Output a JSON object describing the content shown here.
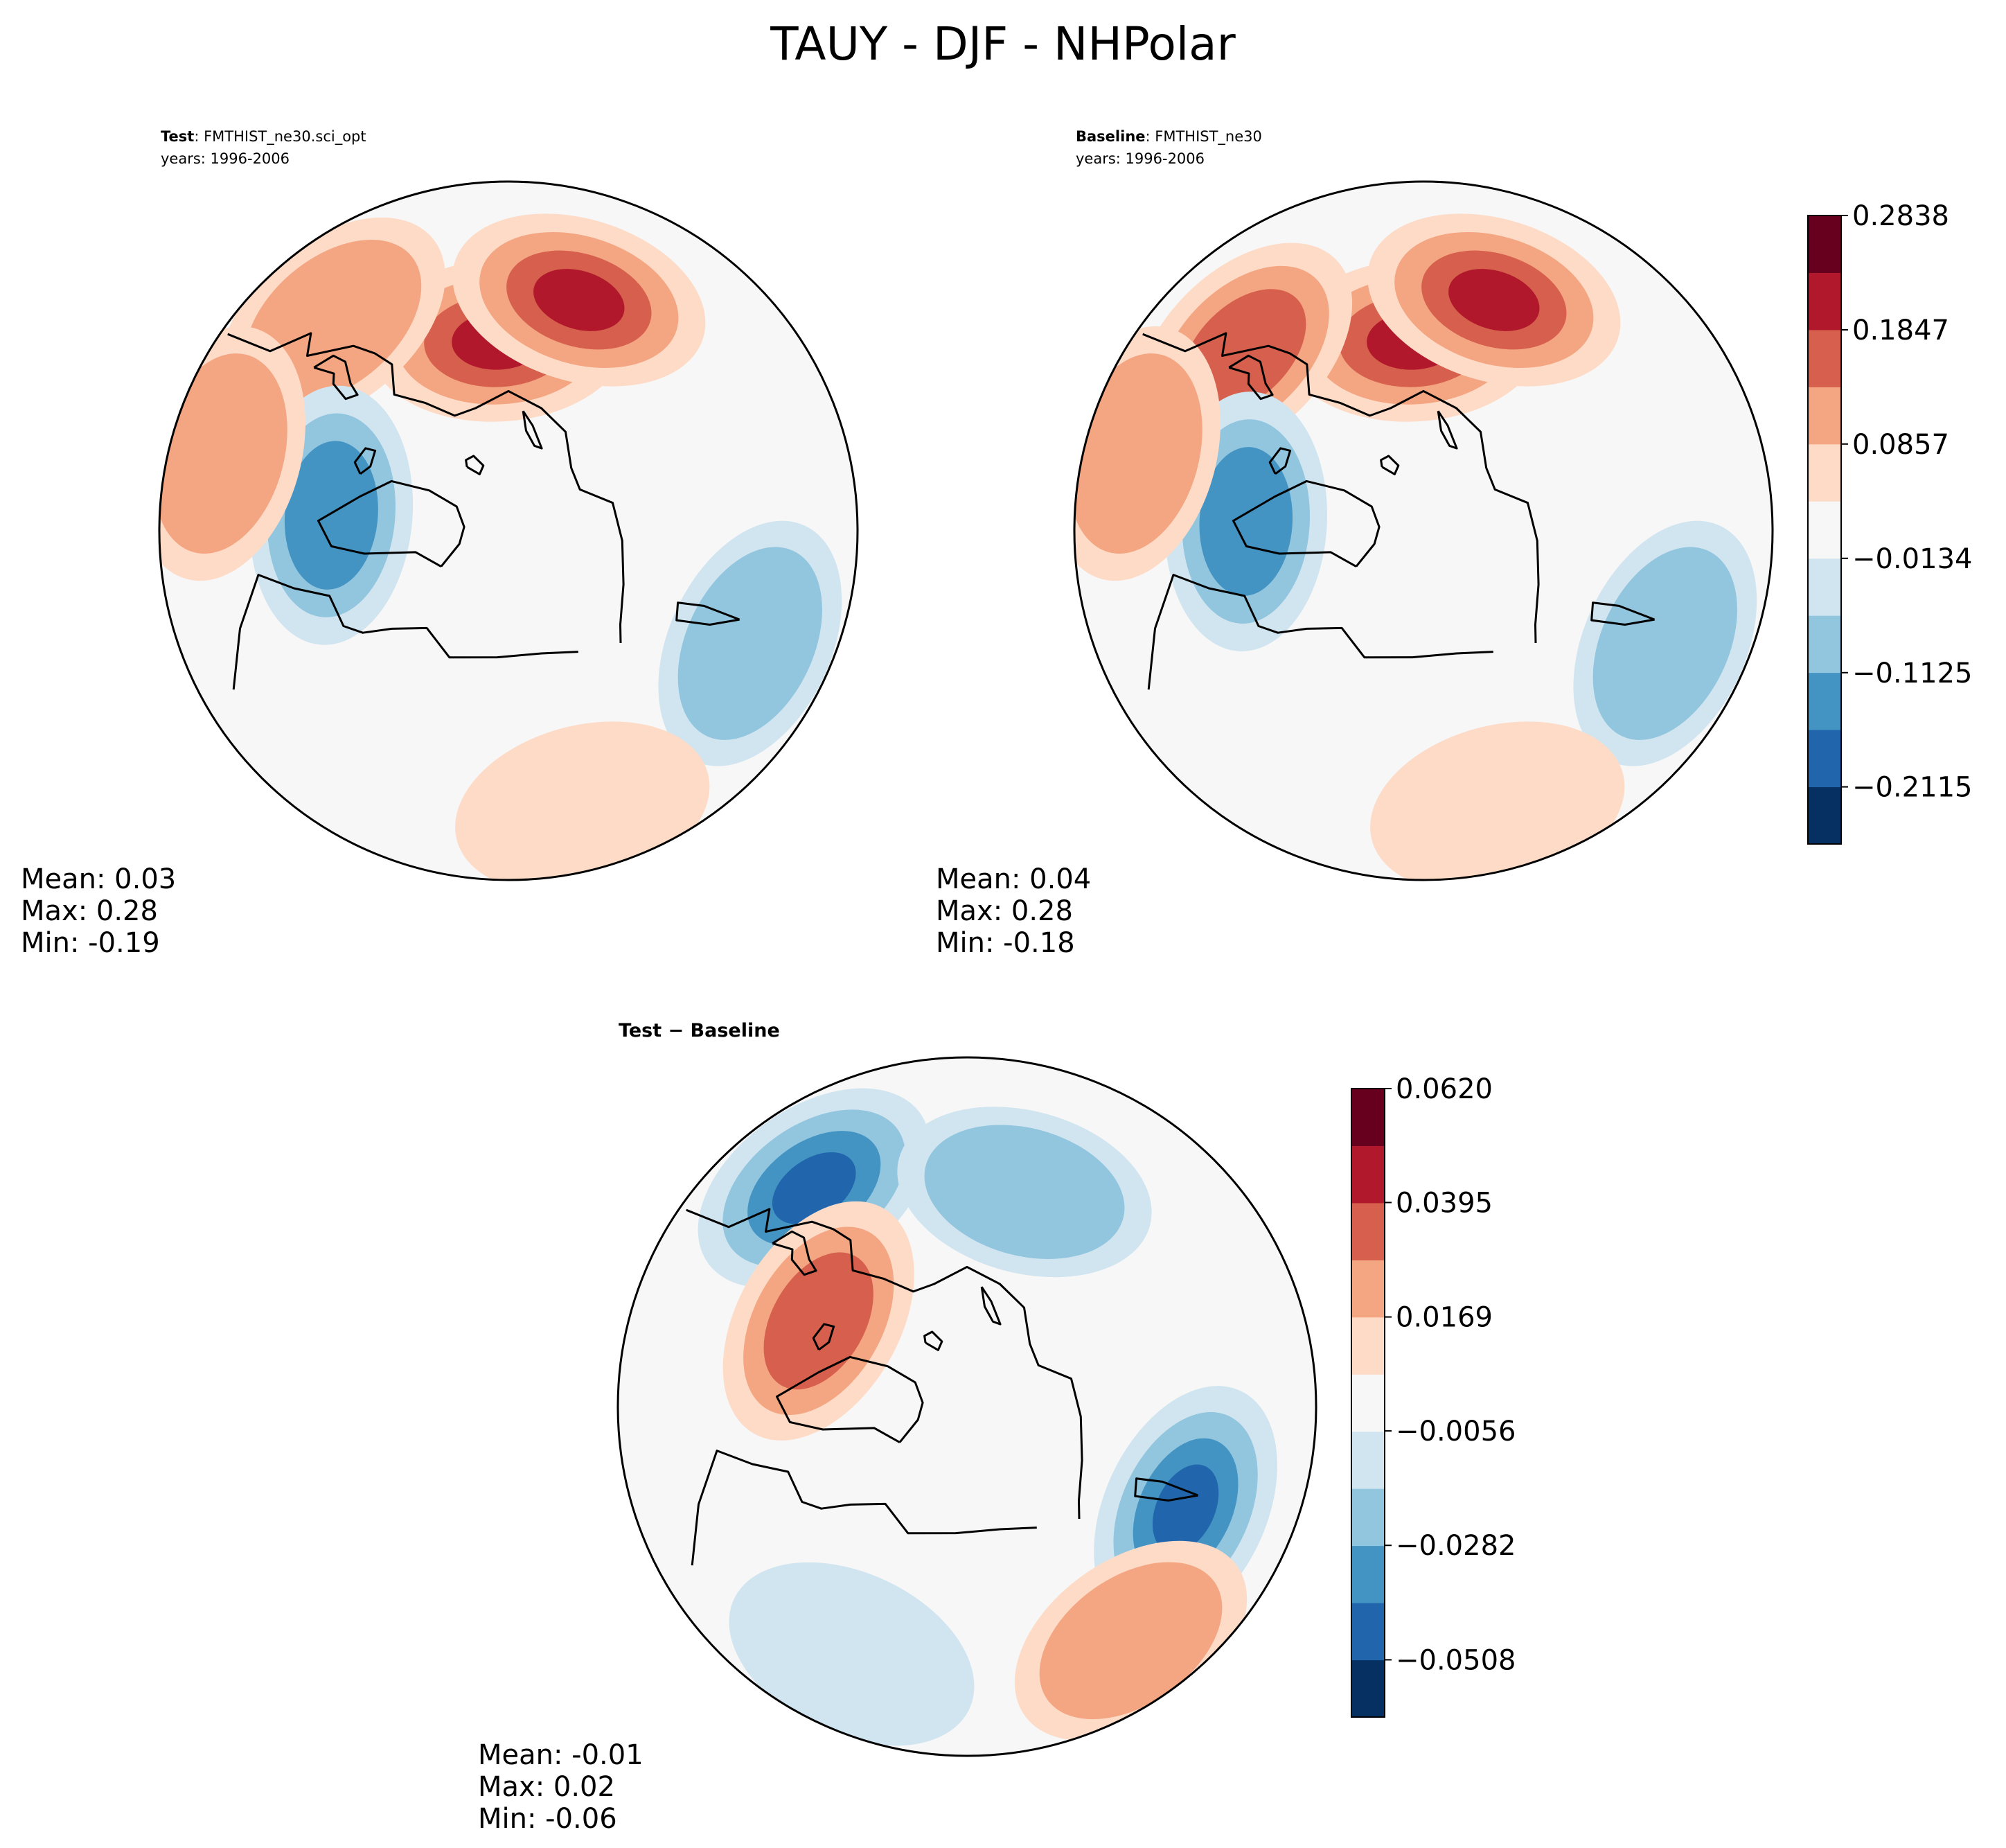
{
  "figure": {
    "title": "TAUY - DJF - NHPolar"
  },
  "panels": [
    {
      "label": "Test",
      "case": ": FMTHIST_ne30.sci_opt",
      "years": "years: 1996-2006",
      "stats": {
        "mean": "Mean:  0.03",
        "max": "Max:  0.28",
        "min": "Min: -0.19"
      },
      "field_features": [
        {
          "kind": "warm",
          "lon": 42,
          "lat": 60,
          "level": 4
        },
        {
          "kind": "warm",
          "lon": 62,
          "lat": 52,
          "level": 4
        },
        {
          "kind": "warm",
          "lon": 5,
          "lat": 47,
          "level": 2
        },
        {
          "kind": "cold",
          "lon": -40,
          "lat": 62,
          "level": 3
        },
        {
          "kind": "cold",
          "lon": 160,
          "lat": 48,
          "level": 2
        },
        {
          "kind": "warm",
          "lon": -30,
          "lat": 43,
          "level": 2
        },
        {
          "kind": "warm",
          "lon": -150,
          "lat": 45,
          "level": 1
        }
      ]
    },
    {
      "label": "Baseline",
      "case": ": FMTHIST_ne30",
      "years": "years: 1996-2006",
      "stats": {
        "mean": "Mean:  0.04",
        "max": "Max:  0.28",
        "min": "Min: -0.18"
      },
      "field_features": [
        {
          "kind": "warm",
          "lon": 42,
          "lat": 60,
          "level": 4
        },
        {
          "kind": "warm",
          "lon": 62,
          "lat": 52,
          "level": 4
        },
        {
          "kind": "warm",
          "lon": 0,
          "lat": 50,
          "level": 3
        },
        {
          "kind": "cold",
          "lon": -42,
          "lat": 62,
          "level": 3
        },
        {
          "kind": "cold",
          "lon": 160,
          "lat": 48,
          "level": 2
        },
        {
          "kind": "warm",
          "lon": -30,
          "lat": 43,
          "level": 2
        },
        {
          "kind": "warm",
          "lon": -150,
          "lat": 45,
          "level": 1
        }
      ]
    },
    {
      "label": "Test − Baseline",
      "stats": {
        "mean": "Mean: -0.01",
        "max": "Max:  0.02",
        "min": "Min: -0.06"
      },
      "field_features": [
        {
          "kind": "cold",
          "lon": 160,
          "lat": 52,
          "level": 4
        },
        {
          "kind": "cold",
          "lon": 10,
          "lat": 48,
          "level": 4
        },
        {
          "kind": "cold",
          "lon": 60,
          "lat": 55,
          "level": 2
        },
        {
          "kind": "warm",
          "lon": -15,
          "lat": 63,
          "level": 3
        },
        {
          "kind": "warm",
          "lon": -170,
          "lat": 45,
          "level": 2
        },
        {
          "kind": "cold",
          "lon": -110,
          "lat": 47,
          "level": 1
        }
      ]
    }
  ],
  "colorbars": [
    {
      "ticks": [
        "0.2838",
        "0.1847",
        "0.0857",
        "−0.0134",
        "−0.1125",
        "−0.2115"
      ],
      "tick_values": [
        0.2838,
        0.1847,
        0.0857,
        -0.0134,
        -0.1125,
        -0.2115
      ],
      "range": [
        -0.261,
        0.2838
      ]
    },
    {
      "ticks": [
        "0.0620",
        "0.0395",
        "0.0169",
        "−0.0056",
        "−0.0282",
        "−0.0508"
      ],
      "tick_values": [
        0.062,
        0.0395,
        0.0169,
        -0.0056,
        -0.0282,
        -0.0508
      ],
      "range": [
        -0.0621,
        0.062
      ]
    }
  ],
  "colors": [
    "#053061",
    "#2166ac",
    "#4393c3",
    "#92c5de",
    "#d1e5f0",
    "#f7f7f7",
    "#fddbc7",
    "#f4a582",
    "#d6604d",
    "#b2182b",
    "#67001f"
  ],
  "chart_data": [
    {
      "type": "heatmap",
      "title": "Test : FMTHIST_ne30.sci_opt",
      "projection": "North Polar Stereographic",
      "years": "1996-2006",
      "variable": "TAUY",
      "season": "DJF",
      "mean": 0.03,
      "max": 0.28,
      "min": -0.19,
      "colorbar_ticks": [
        0.2838,
        0.1847,
        0.0857,
        -0.0134,
        -0.1125,
        -0.2115
      ]
    },
    {
      "type": "heatmap",
      "title": "Baseline : FMTHIST_ne30",
      "projection": "North Polar Stereographic",
      "years": "1996-2006",
      "variable": "TAUY",
      "season": "DJF",
      "mean": 0.04,
      "max": 0.28,
      "min": -0.18,
      "colorbar_ticks": [
        0.2838,
        0.1847,
        0.0857,
        -0.0134,
        -0.1125,
        -0.2115
      ]
    },
    {
      "type": "heatmap",
      "title": "Test − Baseline",
      "projection": "North Polar Stereographic",
      "variable": "TAUY",
      "season": "DJF",
      "mean": -0.01,
      "max": 0.02,
      "min": -0.06,
      "colorbar_ticks": [
        0.062,
        0.0395,
        0.0169,
        -0.0056,
        -0.0282,
        -0.0508
      ]
    }
  ]
}
